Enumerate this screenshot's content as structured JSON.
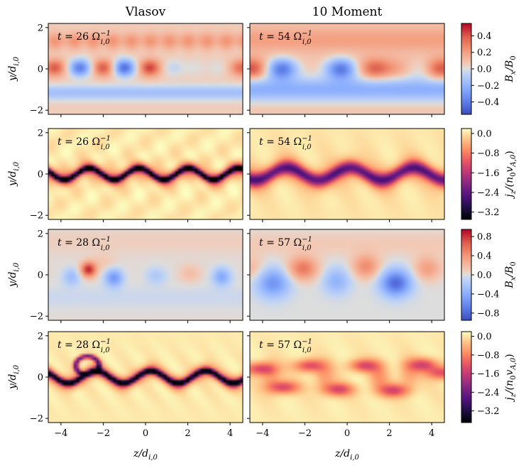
{
  "chart_data": {
    "type": "heatmap",
    "columns": [
      {
        "title": "Vlasov"
      },
      {
        "title": "10 Moment"
      }
    ],
    "x_axis": {
      "label": "z/d_{i,0}",
      "range": [
        -4.6,
        4.6
      ],
      "ticks": [
        "−4",
        "−2",
        "0",
        "2",
        "4"
      ],
      "tick_values": [
        -4,
        -2,
        0,
        2,
        4
      ]
    },
    "y_axis": {
      "label": "y/d_{i,0}",
      "range": [
        -2.2,
        2.2
      ],
      "ticks": [
        "−2",
        "0",
        "2"
      ],
      "tick_values": [
        -2,
        0,
        2
      ]
    },
    "rows": [
      {
        "quantity": "Bx",
        "colorbar": {
          "label": "B_x/B_0",
          "colormap": "coolwarm",
          "range": [
            -0.55,
            0.55
          ],
          "ticks": [
            "0.4",
            "0.2",
            "0.0",
            "−0.2",
            "−0.4"
          ],
          "tick_values": [
            0.4,
            0.2,
            0.0,
            -0.2,
            -0.4
          ]
        },
        "panels": [
          {
            "time_label": "t = 26 Ω_{i,0}^{-1}",
            "t": 26,
            "amplitude": 0.45,
            "model": "vlasov_bx",
            "phase": 0.0
          },
          {
            "time_label": "t = 54 Ω_{i,0}^{-1}",
            "t": 54,
            "amplitude": 0.45,
            "model": "moment_bx",
            "phase": 0.0
          }
        ]
      },
      {
        "quantity": "jz",
        "colorbar": {
          "label": "j_z/(n_0 v_{A,0})",
          "colormap": "magma",
          "range": [
            -3.5,
            0.2
          ],
          "ticks": [
            "0.0",
            "−0.8",
            "−1.6",
            "−2.4",
            "−3.2"
          ],
          "tick_values": [
            0.0,
            -0.8,
            -1.6,
            -2.4,
            -3.2
          ]
        },
        "panels": [
          {
            "time_label": "t = 26 Ω_{i,0}^{-1}",
            "t": 26,
            "amplitude": 3.4,
            "model": "vlasov_jz",
            "phase": 0.0
          },
          {
            "time_label": "t = 54 Ω_{i,0}^{-1}",
            "t": 54,
            "amplitude": 2.1,
            "model": "moment_jz",
            "phase": 0.0
          }
        ]
      },
      {
        "quantity": "Bx",
        "colorbar": {
          "label": "B_x/B_0",
          "colormap": "coolwarm",
          "range": [
            -0.95,
            0.95
          ],
          "ticks": [
            "0.8",
            "0.4",
            "0.0",
            "−0.4",
            "−0.8"
          ],
          "tick_values": [
            0.8,
            0.4,
            0.0,
            -0.4,
            -0.8
          ]
        },
        "panels": [
          {
            "time_label": "t = 28 Ω_{i,0}^{-1}",
            "t": 28,
            "amplitude": 0.8,
            "model": "vlasov_bx2",
            "phase": 0.0
          },
          {
            "time_label": "t = 57 Ω_{i,0}^{-1}",
            "t": 57,
            "amplitude": 0.75,
            "model": "moment_bx2",
            "phase": 0.0
          }
        ]
      },
      {
        "quantity": "jz",
        "colorbar": {
          "label": "j_z/(n_0 v_{A,0})",
          "colormap": "magma",
          "range": [
            -3.7,
            0.2
          ],
          "ticks": [
            "0.0",
            "−0.8",
            "−1.6",
            "−2.4",
            "−3.2"
          ],
          "tick_values": [
            0.0,
            -0.8,
            -1.6,
            -2.4,
            -3.2
          ]
        },
        "panels": [
          {
            "time_label": "t = 28 Ω_{i,0}^{-1}",
            "t": 28,
            "amplitude": 3.6,
            "model": "vlasov_jz2",
            "phase": 0.0
          },
          {
            "time_label": "t = 57 Ω_{i,0}^{-1}",
            "t": 57,
            "amplitude": 1.6,
            "model": "moment_jz2",
            "phase": 0.0
          }
        ]
      }
    ]
  }
}
